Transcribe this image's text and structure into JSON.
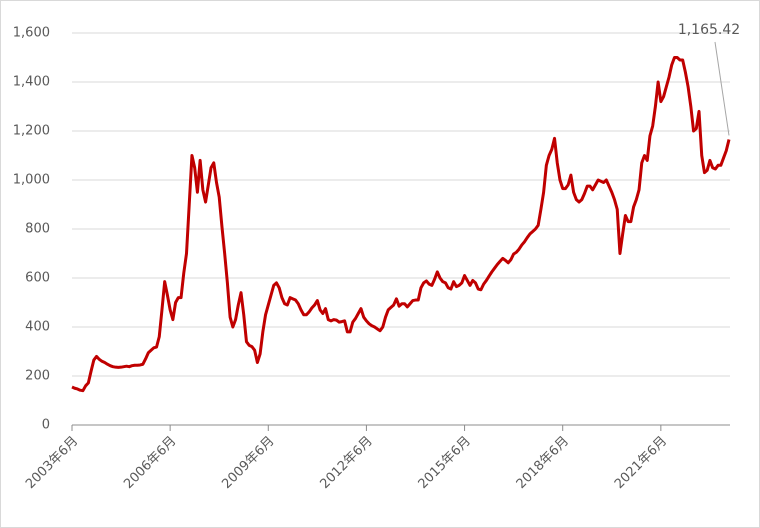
{
  "chart_data": {
    "type": "line",
    "categories": [
      "2003年6月",
      null,
      null,
      null,
      null,
      null,
      null,
      null,
      null,
      null,
      null,
      null,
      null,
      null,
      null,
      null,
      null,
      null,
      null,
      null,
      null,
      null,
      null,
      null,
      null,
      null,
      null,
      null,
      null,
      null,
      null,
      null,
      null,
      null,
      null,
      null,
      "2006年6月",
      null,
      null,
      null,
      null,
      null,
      null,
      null,
      null,
      null,
      null,
      null,
      null,
      null,
      null,
      null,
      null,
      null,
      null,
      null,
      null,
      null,
      null,
      null,
      null,
      null,
      null,
      null,
      null,
      null,
      null,
      null,
      null,
      null,
      null,
      null,
      "2009年6月",
      null,
      null,
      null,
      null,
      null,
      null,
      null,
      null,
      null,
      null,
      null,
      null,
      null,
      null,
      null,
      null,
      null,
      null,
      null,
      null,
      null,
      null,
      null,
      null,
      null,
      null,
      null,
      null,
      null,
      null,
      null,
      null,
      null,
      null,
      null,
      "2012年6月",
      null,
      null,
      null,
      null,
      null,
      null,
      null,
      null,
      null,
      null,
      null,
      null,
      null,
      null,
      null,
      null,
      null,
      null,
      null,
      null,
      null,
      null,
      null,
      null,
      null,
      null,
      null,
      null,
      null,
      null,
      null,
      null,
      null,
      null,
      null,
      "2015年6月",
      null,
      null,
      null,
      null,
      null,
      null,
      null,
      null,
      null,
      null,
      null,
      null,
      null,
      null,
      null,
      null,
      null,
      null,
      null,
      null,
      null,
      null,
      null,
      null,
      null,
      null,
      null,
      null,
      null,
      null,
      null,
      null,
      null,
      null,
      null,
      "2018年6月",
      null,
      null,
      null,
      null,
      null,
      null,
      null,
      null,
      null,
      null,
      null,
      null,
      null,
      null,
      null,
      null,
      null,
      null,
      null,
      null,
      null,
      null,
      null,
      null,
      null,
      null,
      null,
      null,
      null,
      null,
      null,
      null,
      null,
      null,
      null,
      "2021年6月",
      null,
      null,
      null,
      null,
      null,
      null,
      null,
      null,
      null,
      null,
      null,
      null,
      null,
      null,
      null,
      null,
      null,
      null,
      null,
      null,
      null,
      null,
      null,
      null,
      null
    ],
    "series": [
      {
        "color": "#c00000",
        "values": [
          155,
          150,
          147,
          142,
          140,
          160,
          172,
          220,
          265,
          280,
          268,
          260,
          255,
          248,
          242,
          238,
          236,
          235,
          236,
          238,
          240,
          238,
          242,
          244,
          244,
          245,
          248,
          270,
          295,
          305,
          315,
          318,
          360,
          470,
          585,
          530,
          470,
          430,
          500,
          520,
          520,
          620,
          700,
          900,
          1100,
          1050,
          950,
          1080,
          960,
          910,
          980,
          1050,
          1070,
          990,
          930,
          810,
          700,
          580,
          440,
          400,
          430,
          490,
          540,
          450,
          340,
          325,
          320,
          305,
          255,
          290,
          380,
          450,
          490,
          530,
          570,
          580,
          560,
          520,
          495,
          490,
          520,
          515,
          510,
          495,
          470,
          450,
          450,
          462,
          478,
          490,
          508,
          470,
          455,
          475,
          430,
          425,
          430,
          428,
          420,
          422,
          425,
          380,
          380,
          420,
          435,
          455,
          475,
          440,
          425,
          413,
          405,
          400,
          392,
          385,
          400,
          440,
          470,
          480,
          490,
          515,
          485,
          495,
          495,
          482,
          495,
          508,
          510,
          510,
          560,
          580,
          588,
          575,
          570,
          595,
          625,
          600,
          585,
          580,
          560,
          555,
          585,
          565,
          570,
          580,
          610,
          590,
          570,
          590,
          580,
          555,
          552,
          575,
          590,
          608,
          625,
          640,
          655,
          668,
          680,
          672,
          662,
          675,
          698,
          705,
          718,
          735,
          748,
          765,
          780,
          790,
          800,
          815,
          880,
          950,
          1060,
          1100,
          1125,
          1170,
          1070,
          1000,
          965,
          965,
          980,
          1020,
          950,
          920,
          910,
          920,
          945,
          975,
          975,
          960,
          980,
          1000,
          995,
          990,
          1000,
          975,
          950,
          920,
          880,
          700,
          780,
          855,
          830,
          830,
          890,
          920,
          960,
          1070,
          1100,
          1080,
          1180,
          1220,
          1300,
          1400,
          1320,
          1340,
          1380,
          1420,
          1470,
          1500,
          1500,
          1490,
          1490,
          1440,
          1380,
          1300,
          1200,
          1210,
          1280,
          1100,
          1030,
          1040,
          1080,
          1050,
          1045,
          1060,
          1060,
          1090,
          1120,
          1165.42
        ]
      }
    ],
    "annotation": "1,165.42",
    "ylim": [
      0,
      1600
    ],
    "yticks": [
      0,
      200,
      400,
      600,
      800,
      {
        "value": 1000,
        "label": "1,000"
      },
      {
        "value": 1200,
        "label": "1,200"
      },
      {
        "value": 1400,
        "label": "1,400"
      },
      {
        "value": 1600,
        "label": "1,600"
      }
    ],
    "grid": true
  }
}
